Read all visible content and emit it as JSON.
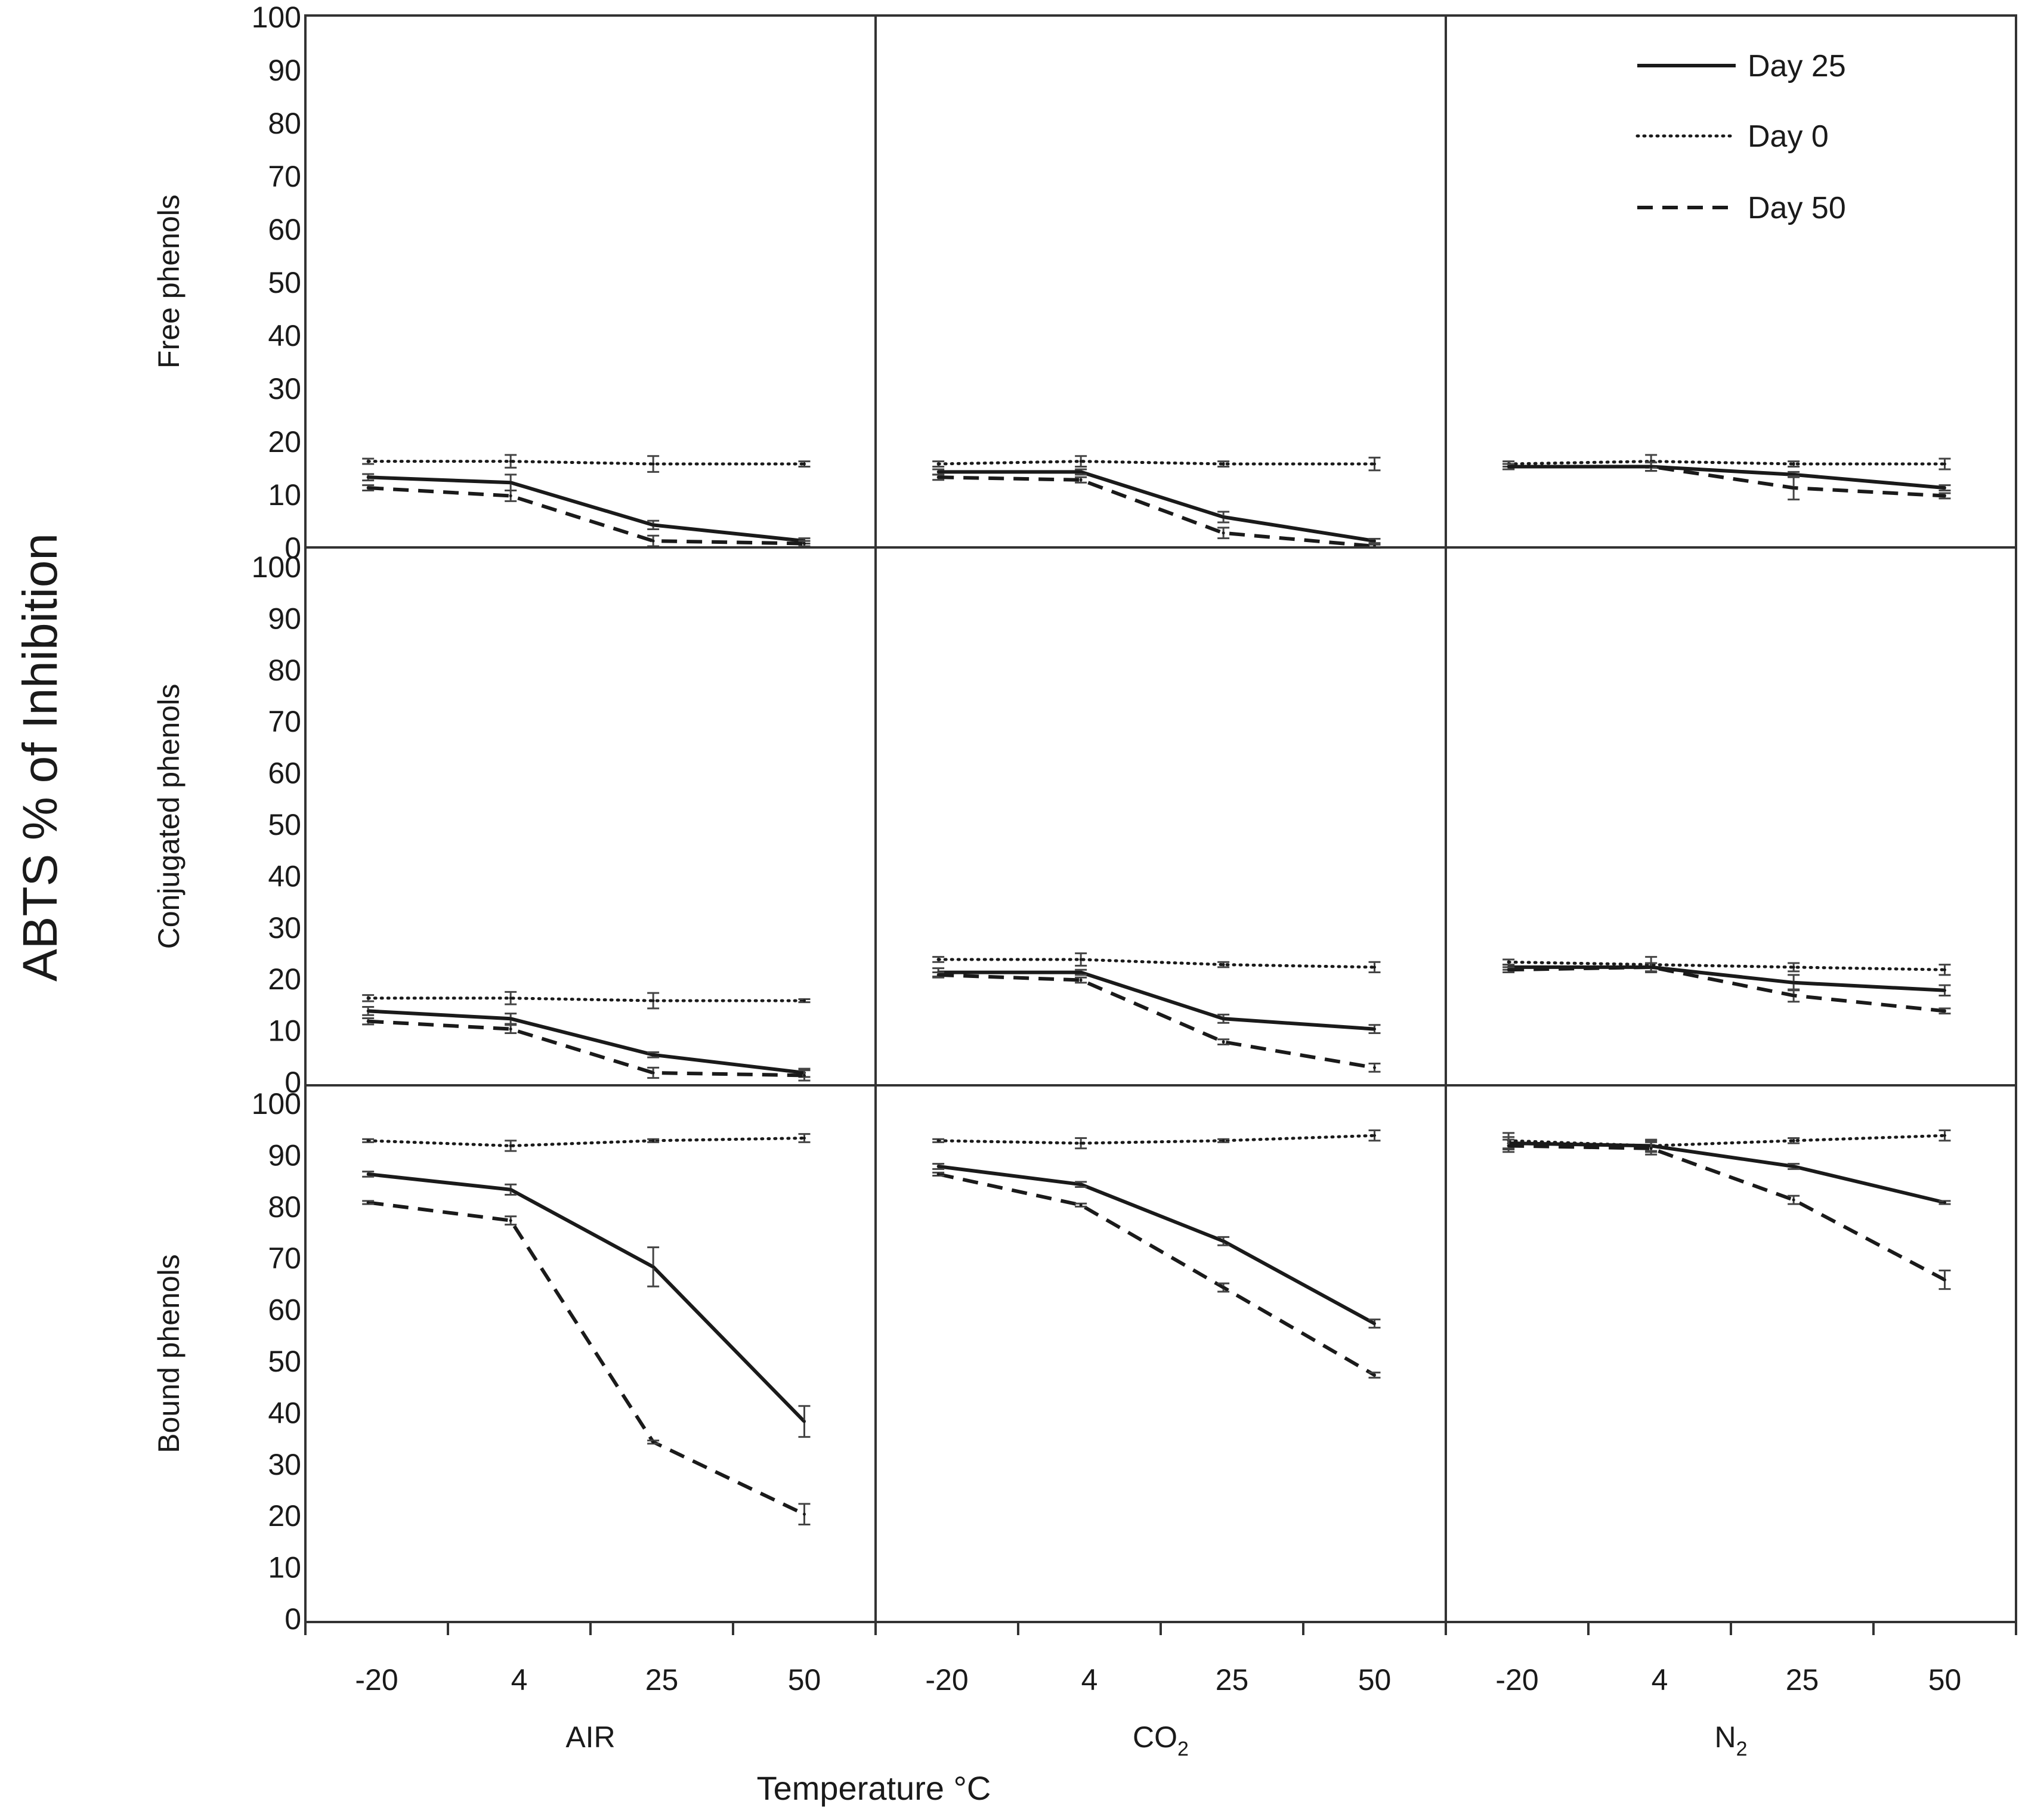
{
  "figure": {
    "y_axis_title": "ABTS  % of Inhibition",
    "x_axis_title": "Temperature °C"
  },
  "legend": {
    "position": "top-right",
    "entries": [
      {
        "label": "Day 25",
        "style": "solid"
      },
      {
        "label": "Day 0",
        "style": "dotted"
      },
      {
        "label": "Day 50",
        "style": "dashed"
      }
    ]
  },
  "colors": {
    "line": "#1a1a1a",
    "frame": "#333333",
    "background": "#ffffff"
  },
  "chart_data": {
    "type": "line",
    "x": [
      "-20",
      "4",
      "25",
      "50"
    ],
    "xlabel": "Temperature °C",
    "ylabel": "ABTS  % of Inhibition",
    "grid": false,
    "atmospheres": [
      {
        "label": "AIR",
        "base": "AIR",
        "sub": ""
      },
      {
        "label": "CO2",
        "base": "CO",
        "sub": "2"
      },
      {
        "label": "N2",
        "base": "N",
        "sub": "2"
      }
    ],
    "rows": [
      {
        "name": "Free phenols",
        "ylim": [
          0,
          100
        ],
        "yticks": [
          "100",
          "90",
          "80",
          "70",
          "60",
          "50",
          "40",
          "30",
          "20",
          "10",
          "0"
        ],
        "panels": [
          {
            "atmosphere": "AIR",
            "series": [
              {
                "name": "Day 25",
                "values": [
                  13,
                  12,
                  4,
                  1
                ],
                "errors": [
                  0.6,
                  1.5,
                  0.8,
                  0.5
                ]
              },
              {
                "name": "Day 0",
                "values": [
                  16,
                  16,
                  15.5,
                  15.5
                ],
                "errors": [
                  0.5,
                  1.2,
                  1.5,
                  0.5
                ]
              },
              {
                "name": "Day 50",
                "values": [
                  11,
                  9.5,
                  1,
                  0.5
                ],
                "errors": [
                  0.5,
                  1,
                  1,
                  0.5
                ]
              }
            ]
          },
          {
            "atmosphere": "CO2",
            "series": [
              {
                "name": "Day 25",
                "values": [
                  14,
                  14,
                  5.5,
                  1
                ],
                "errors": [
                  0.5,
                  0.5,
                  1,
                  0.4
                ]
              },
              {
                "name": "Day 0",
                "values": [
                  15.5,
                  16,
                  15.5,
                  15.5
                ],
                "errors": [
                  0.5,
                  1,
                  0.5,
                  1.2
                ]
              },
              {
                "name": "Day 50",
                "values": [
                  13,
                  12.5,
                  2.5,
                  0
                ],
                "errors": [
                  0.5,
                  0.5,
                  1,
                  0.3
                ]
              }
            ]
          },
          {
            "atmosphere": "N2",
            "series": [
              {
                "name": "Day 25",
                "values": [
                  15,
                  15,
                  13.5,
                  11
                ],
                "errors": [
                  0.5,
                  0.8,
                  0.5,
                  0.5
                ]
              },
              {
                "name": "Day 0",
                "values": [
                  15.5,
                  16,
                  15.5,
                  15.5
                ],
                "errors": [
                  0.5,
                  1.2,
                  0.5,
                  1
                ]
              },
              {
                "name": "Day 50",
                "values": [
                  15,
                  15,
                  11,
                  9.5
                ],
                "errors": [
                  0.5,
                  0.8,
                  2.2,
                  0.5
                ]
              }
            ]
          }
        ]
      },
      {
        "name": "Conjugated phenols",
        "ylim": [
          0,
          100
        ],
        "yticks": [
          "100",
          "90",
          "80",
          "70",
          "60",
          "50",
          "40",
          "30",
          "20",
          "10",
          "0"
        ],
        "panels": [
          {
            "atmosphere": "AIR",
            "series": [
              {
                "name": "Day 25",
                "values": [
                  13.5,
                  12,
                  5,
                  1.5
                ],
                "errors": [
                  0.8,
                  1,
                  0.5,
                  0.8
                ]
              },
              {
                "name": "Day 0",
                "values": [
                  16,
                  16,
                  15.5,
                  15.5
                ],
                "errors": [
                  0.6,
                  1.2,
                  1.5,
                  0.3
                ]
              },
              {
                "name": "Day 50",
                "values": [
                  11.5,
                  10,
                  1.5,
                  1
                ],
                "errors": [
                  0.6,
                  0.8,
                  1,
                  1
                ]
              }
            ]
          },
          {
            "atmosphere": "CO2",
            "series": [
              {
                "name": "Day 25",
                "values": [
                  21,
                  21,
                  12,
                  10
                ],
                "errors": [
                  0.8,
                  0.5,
                  0.8,
                  0.8
                ]
              },
              {
                "name": "Day 0",
                "values": [
                  23.5,
                  23.5,
                  22.5,
                  22
                ],
                "errors": [
                  0.5,
                  1.2,
                  0.5,
                  1
                ]
              },
              {
                "name": "Day 50",
                "values": [
                  20.5,
                  19.5,
                  7.5,
                  2.5
                ],
                "errors": [
                  0.5,
                  0.5,
                  0.5,
                  0.8
                ]
              }
            ]
          },
          {
            "atmosphere": "N2",
            "series": [
              {
                "name": "Day 25",
                "values": [
                  22,
                  22,
                  19,
                  17.5
                ],
                "errors": [
                  0.5,
                  0.8,
                  1.5,
                  1
                ]
              },
              {
                "name": "Day 0",
                "values": [
                  23,
                  22.5,
                  22,
                  21.5
                ],
                "errors": [
                  0.5,
                  1.5,
                  0.8,
                  1
                ]
              },
              {
                "name": "Day 50",
                "values": [
                  21.5,
                  22,
                  16.5,
                  13.5
                ],
                "errors": [
                  0.5,
                  0.8,
                  1.2,
                  0.5
                ]
              }
            ]
          }
        ]
      },
      {
        "name": "Bound phenols",
        "ylim": [
          0,
          100
        ],
        "yticks": [
          "100",
          "90",
          "80",
          "70",
          "60",
          "50",
          "40",
          "30",
          "20",
          "10",
          "0"
        ],
        "panels": [
          {
            "atmosphere": "AIR",
            "series": [
              {
                "name": "Day 25",
                "values": [
                  86,
                  83,
                  68,
                  38
                ],
                "errors": [
                  0.5,
                  1,
                  3.8,
                  3
                ]
              },
              {
                "name": "Day 0",
                "values": [
                  92.5,
                  91.5,
                  92.5,
                  93
                ],
                "errors": [
                  0.3,
                  1,
                  0.3,
                  0.8
                ]
              },
              {
                "name": "Day 50",
                "values": [
                  80.5,
                  77,
                  34,
                  20
                ],
                "errors": [
                  0.3,
                  0.8,
                  0.3,
                  2
                ]
              }
            ]
          },
          {
            "atmosphere": "CO2",
            "series": [
              {
                "name": "Day 25",
                "values": [
                  87.5,
                  84,
                  73,
                  57
                ],
                "errors": [
                  0.5,
                  0.5,
                  0.8,
                  0.8
                ]
              },
              {
                "name": "Day 0",
                "values": [
                  92.5,
                  92,
                  92.5,
                  93.5
                ],
                "errors": [
                  0.3,
                  1,
                  0.3,
                  1
                ]
              },
              {
                "name": "Day 50",
                "values": [
                  86,
                  80,
                  64,
                  47
                ],
                "errors": [
                  0.3,
                  0.3,
                  0.8,
                  0.5
                ]
              }
            ]
          },
          {
            "atmosphere": "N2",
            "series": [
              {
                "name": "Day 25",
                "values": [
                  92,
                  91.5,
                  87.5,
                  80.5
                ],
                "errors": [
                  1.2,
                  1,
                  0.5,
                  0.3
                ]
              },
              {
                "name": "Day 0",
                "values": [
                  92.5,
                  91.5,
                  92.5,
                  93.5
                ],
                "errors": [
                  1.5,
                  1.2,
                  0.5,
                  1
                ]
              },
              {
                "name": "Day 50",
                "values": [
                  91.5,
                  91,
                  81,
                  65.5
                ],
                "errors": [
                  1.2,
                  1.2,
                  0.8,
                  1.8
                ]
              }
            ]
          }
        ]
      }
    ]
  }
}
